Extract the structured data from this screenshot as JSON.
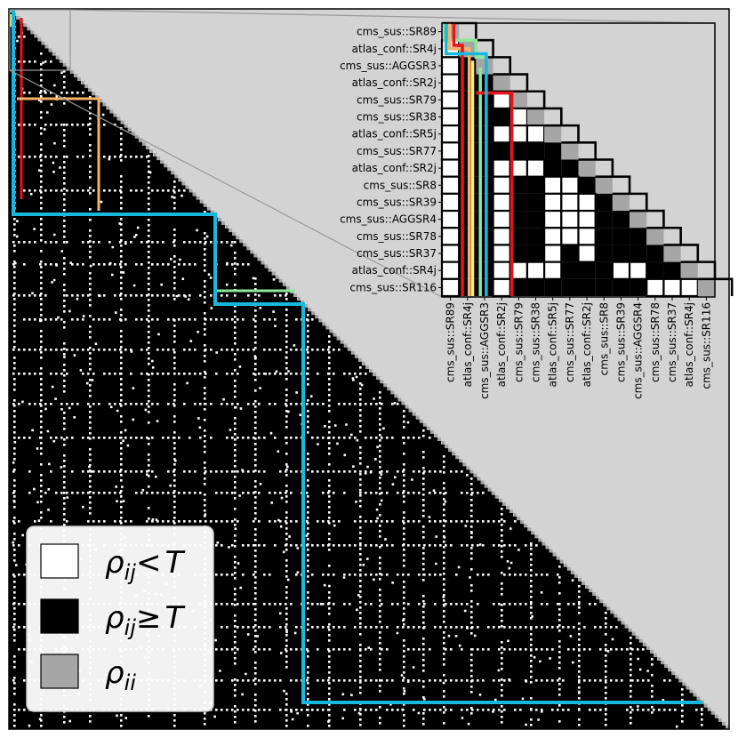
{
  "chart_data": {
    "type": "heatmap",
    "title": "",
    "xlabel": "",
    "ylabel": "",
    "grid": false,
    "colors": {
      "below_threshold": "#ffffff",
      "above_threshold": "#000000",
      "diagonal": "#a6a6a6",
      "background": "#d3d3d3"
    },
    "legend": {
      "placement": "bottom-left",
      "entries": [
        {
          "key": "below",
          "color": "#ffffff",
          "symbol": "ρ",
          "sub": "ij",
          "relation": "<",
          "rhs": "T"
        },
        {
          "key": "above",
          "color": "#000000",
          "symbol": "ρ",
          "sub": "ij",
          "relation": "≥",
          "rhs": "T"
        },
        {
          "key": "diagonal",
          "color": "#a6a6a6",
          "symbol": "ρ",
          "sub": "ii",
          "relation": "",
          "rhs": ""
        }
      ]
    },
    "inset": {
      "labels": [
        "cms_sus::SR89",
        "atlas_conf::SR4j",
        "cms_sus::AGGSR3",
        "atlas_conf::SR2j",
        "cms_sus::SR79",
        "cms_sus::SR38",
        "atlas_conf::SR5j",
        "cms_sus::SR77",
        "atlas_conf::SR2j",
        "cms_sus::SR8",
        "cms_sus::SR39",
        "cms_sus::AGGSR4",
        "cms_sus::SR78",
        "cms_sus::SR37",
        "atlas_conf::SR4j",
        "cms_sus::SR116"
      ],
      "below_threshold_cells": [
        [
          1,
          0
        ],
        [
          2,
          0
        ],
        [
          3,
          0
        ],
        [
          4,
          0
        ],
        [
          5,
          0
        ],
        [
          6,
          0
        ],
        [
          7,
          0
        ],
        [
          8,
          0
        ],
        [
          9,
          0
        ],
        [
          10,
          0
        ],
        [
          11,
          0
        ],
        [
          12,
          0
        ],
        [
          13,
          0
        ],
        [
          14,
          0
        ],
        [
          15,
          0
        ],
        [
          4,
          3
        ],
        [
          6,
          3
        ],
        [
          8,
          3
        ],
        [
          9,
          3
        ],
        [
          10,
          3
        ],
        [
          11,
          3
        ],
        [
          12,
          3
        ],
        [
          13,
          3
        ],
        [
          14,
          3
        ],
        [
          15,
          3
        ],
        [
          5,
          4
        ],
        [
          6,
          4
        ],
        [
          8,
          4
        ],
        [
          14,
          4
        ],
        [
          6,
          5
        ],
        [
          8,
          5
        ],
        [
          14,
          5
        ],
        [
          9,
          6
        ],
        [
          10,
          6
        ],
        [
          11,
          6
        ],
        [
          12,
          6
        ],
        [
          13,
          6
        ],
        [
          14,
          6
        ],
        [
          9,
          7
        ],
        [
          10,
          7
        ],
        [
          11,
          7
        ],
        [
          12,
          7
        ],
        [
          10,
          8
        ],
        [
          11,
          8
        ],
        [
          12,
          8
        ],
        [
          13,
          8
        ],
        [
          14,
          10
        ],
        [
          14,
          11
        ],
        [
          15,
          12
        ],
        [
          15,
          13
        ],
        [
          15,
          14
        ]
      ]
    }
  }
}
